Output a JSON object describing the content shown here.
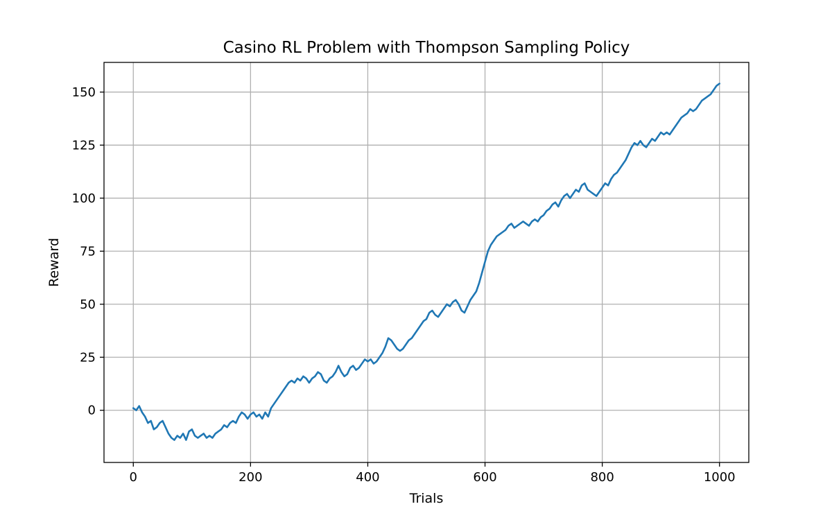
{
  "chart_data": {
    "type": "line",
    "title": "Casino RL Problem with Thompson Sampling Policy",
    "xlabel": "Trials",
    "ylabel": "Reward",
    "xlim": [
      -50,
      1050
    ],
    "ylim": [
      -24.6,
      164
    ],
    "xticks": [
      0,
      200,
      400,
      600,
      800,
      1000
    ],
    "yticks": [
      0,
      25,
      50,
      75,
      100,
      125,
      150
    ],
    "grid": true,
    "legend": "none",
    "colors": {
      "line": "#1f77b4",
      "grid": "#b0b0b0",
      "axes": "#000000"
    },
    "series": [
      {
        "x": [
          0,
          5,
          10,
          15,
          20,
          25,
          30,
          35,
          40,
          45,
          50,
          55,
          60,
          65,
          70,
          75,
          80,
          85,
          90,
          95,
          100,
          105,
          110,
          115,
          120,
          125,
          130,
          135,
          140,
          145,
          150,
          155,
          160,
          165,
          170,
          175,
          180,
          185,
          190,
          195,
          200,
          205,
          210,
          215,
          220,
          225,
          230,
          235,
          240,
          245,
          250,
          255,
          260,
          265,
          270,
          275,
          280,
          285,
          290,
          295,
          300,
          305,
          310,
          315,
          320,
          325,
          330,
          335,
          340,
          345,
          350,
          355,
          360,
          365,
          370,
          375,
          380,
          385,
          390,
          395,
          400,
          405,
          410,
          415,
          420,
          425,
          430,
          435,
          440,
          445,
          450,
          455,
          460,
          465,
          470,
          475,
          480,
          485,
          490,
          495,
          500,
          505,
          510,
          515,
          520,
          525,
          530,
          535,
          540,
          545,
          550,
          555,
          560,
          565,
          570,
          575,
          580,
          585,
          590,
          595,
          600,
          605,
          610,
          615,
          620,
          625,
          630,
          635,
          640,
          645,
          650,
          655,
          660,
          665,
          670,
          675,
          680,
          685,
          690,
          695,
          700,
          705,
          710,
          715,
          720,
          725,
          730,
          735,
          740,
          745,
          750,
          755,
          760,
          765,
          770,
          775,
          780,
          785,
          790,
          795,
          800,
          805,
          810,
          815,
          820,
          825,
          830,
          835,
          840,
          845,
          850,
          855,
          860,
          865,
          870,
          875,
          880,
          885,
          890,
          895,
          900,
          905,
          910,
          915,
          920,
          925,
          930,
          935,
          940,
          945,
          950,
          955,
          960,
          965,
          970,
          975,
          980,
          985,
          990,
          995,
          1000
        ],
        "y": [
          1,
          0,
          2,
          -1,
          -3,
          -6,
          -5,
          -9,
          -8,
          -6,
          -5,
          -8,
          -11,
          -13,
          -14,
          -12,
          -13,
          -11,
          -14,
          -10,
          -9,
          -12,
          -13,
          -12,
          -11,
          -13,
          -12,
          -13,
          -11,
          -10,
          -9,
          -7,
          -8,
          -6,
          -5,
          -6,
          -3,
          -1,
          -2,
          -4,
          -2,
          -1,
          -3,
          -2,
          -4,
          -1,
          -3,
          1,
          3,
          5,
          7,
          9,
          11,
          13,
          14,
          13,
          15,
          14,
          16,
          15,
          13,
          15,
          16,
          18,
          17,
          14,
          13,
          15,
          16,
          18,
          21,
          18,
          16,
          17,
          20,
          21,
          19,
          20,
          22,
          24,
          23,
          24,
          22,
          23,
          25,
          27,
          30,
          34,
          33,
          31,
          29,
          28,
          29,
          31,
          33,
          34,
          36,
          38,
          40,
          42,
          43,
          46,
          47,
          45,
          44,
          46,
          48,
          50,
          49,
          51,
          52,
          50,
          47,
          46,
          49,
          52,
          54,
          56,
          60,
          65,
          70,
          75,
          78,
          80,
          82,
          83,
          84,
          85,
          87,
          88,
          86,
          87,
          88,
          89,
          88,
          87,
          89,
          90,
          89,
          91,
          92,
          94,
          95,
          97,
          98,
          96,
          99,
          101,
          102,
          100,
          102,
          104,
          103,
          106,
          107,
          104,
          103,
          102,
          101,
          103,
          105,
          107,
          106,
          109,
          111,
          112,
          114,
          116,
          118,
          121,
          124,
          126,
          125,
          127,
          125,
          124,
          126,
          128,
          127,
          129,
          131,
          130,
          131,
          130,
          132,
          134,
          136,
          138,
          139,
          140,
          142,
          141,
          142,
          144,
          146,
          147,
          148,
          149,
          151,
          153,
          154
        ]
      }
    ]
  }
}
